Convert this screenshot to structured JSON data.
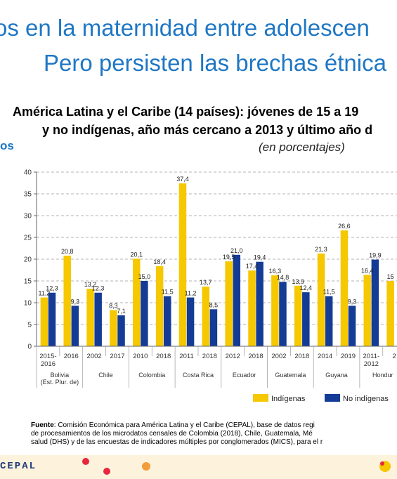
{
  "slide": {
    "title_line1": "os en la maternidad entre adolescen",
    "title_line2": "Pero persisten las brechas étnica",
    "subtitle_line1": "América Latina y el Caribe (14 países):  jóvenes de 15 a 19",
    "subtitle_line2": "y no indígenas, año más cercano a 2013 y último año d",
    "unit": "(en porcentajes)",
    "side_fragment": "os",
    "source_label": "Fuente",
    "source_line1": ":   Comisión Económica para América Latina y el Caribe (CEPAL), base de datos regi",
    "source_line2": "de procesamientos de los microdatos censales de Colombia (2018), Chile, Guatemala, Mé",
    "source_line3": "salud (DHS) y de las encuestas de indicadores múltiples por conglomerados (MICS), para el r",
    "brand": "CEPAL"
  },
  "chart_data": {
    "type": "bar",
    "ylim": [
      0,
      40
    ],
    "yticks": [
      0,
      5,
      10,
      15,
      20,
      25,
      30,
      35,
      40
    ],
    "grid": "horizontal-dashed",
    "legend_position": "bottom-right",
    "colors": {
      "indigenas": "#f5c800",
      "no_indigenas": "#143c96"
    },
    "groups": [
      {
        "country": "Bolivia (Est. Plur. de)",
        "country_lines": [
          "Bolivia",
          "(Est. Plur. de)"
        ],
        "years": [
          {
            "label": [
              "2015-",
              "2016"
            ],
            "ind": 11.2,
            "noind": 12.3,
            "ind_label": "11,2",
            "noind_label": "12,3"
          },
          {
            "label": [
              "2016"
            ],
            "ind": 20.8,
            "noind": 9.3,
            "ind_label": "20,8",
            "noind_label": "9,3"
          }
        ]
      },
      {
        "country": "Chile",
        "country_lines": [
          "Chile"
        ],
        "years": [
          {
            "label": [
              "2002"
            ],
            "ind": 13.2,
            "noind": 12.3,
            "ind_label": "13,2",
            "noind_label": "12,3"
          },
          {
            "label": [
              "2017"
            ],
            "ind": 8.3,
            "noind": 7.1,
            "ind_label": "8,3",
            "noind_label": "7,1"
          }
        ]
      },
      {
        "country": "Colombia",
        "country_lines": [
          "Colombia"
        ],
        "years": [
          {
            "label": [
              "2010"
            ],
            "ind": 20.1,
            "noind": 15.0,
            "ind_label": "20,1",
            "noind_label": "15,0"
          },
          {
            "label": [
              "2018"
            ],
            "ind": 18.4,
            "noind": 11.5,
            "ind_label": "18,4",
            "noind_label": "11,5"
          }
        ]
      },
      {
        "country": "Costa Rica",
        "country_lines": [
          "Costa Rica"
        ],
        "years": [
          {
            "label": [
              "2011"
            ],
            "ind": 37.4,
            "noind": 11.2,
            "ind_label": "37,4",
            "noind_label": "11,2"
          },
          {
            "label": [
              "2018"
            ],
            "ind": 13.7,
            "noind": 8.5,
            "ind_label": "13,7",
            "noind_label": "8,5"
          }
        ]
      },
      {
        "country": "Ecuador",
        "country_lines": [
          "Ecuador"
        ],
        "years": [
          {
            "label": [
              "2012"
            ],
            "ind": 19.5,
            "noind": 21.0,
            "ind_label": "19,5",
            "noind_label": "21,0"
          },
          {
            "label": [
              "2018"
            ],
            "ind": 17.4,
            "noind": 19.4,
            "ind_label": "17,4",
            "noind_label": "19,4"
          }
        ]
      },
      {
        "country": "Guatemala",
        "country_lines": [
          "Guatemala"
        ],
        "years": [
          {
            "label": [
              "2002"
            ],
            "ind": 16.3,
            "noind": 14.8,
            "ind_label": "16,3",
            "noind_label": "14,8"
          },
          {
            "label": [
              "2018"
            ],
            "ind": 13.9,
            "noind": 12.4,
            "ind_label": "13,9",
            "noind_label": "12,4"
          }
        ]
      },
      {
        "country": "Guyana",
        "country_lines": [
          "Guyana"
        ],
        "years": [
          {
            "label": [
              "2014"
            ],
            "ind": 21.3,
            "noind": 11.5,
            "ind_label": "21,3",
            "noind_label": "11,5"
          },
          {
            "label": [
              "2019"
            ],
            "ind": 26.6,
            "noind": 9.3,
            "ind_label": "26,6",
            "noind_label": "9,3"
          }
        ]
      },
      {
        "country": "Hondur",
        "country_lines": [
          "Hondur"
        ],
        "years": [
          {
            "label": [
              "2011-",
              "2012"
            ],
            "ind": 16.4,
            "noind": 19.9,
            "ind_label": "16,4",
            "noind_label": "19,9"
          },
          {
            "label": [
              "2"
            ],
            "ind": 15,
            "noind": null,
            "ind_label": "15",
            "noind_label": ""
          }
        ]
      }
    ],
    "legend": [
      {
        "key": "indigenas",
        "label": "Indígenas"
      },
      {
        "key": "no_indigenas",
        "label": "No indígenas"
      }
    ]
  }
}
